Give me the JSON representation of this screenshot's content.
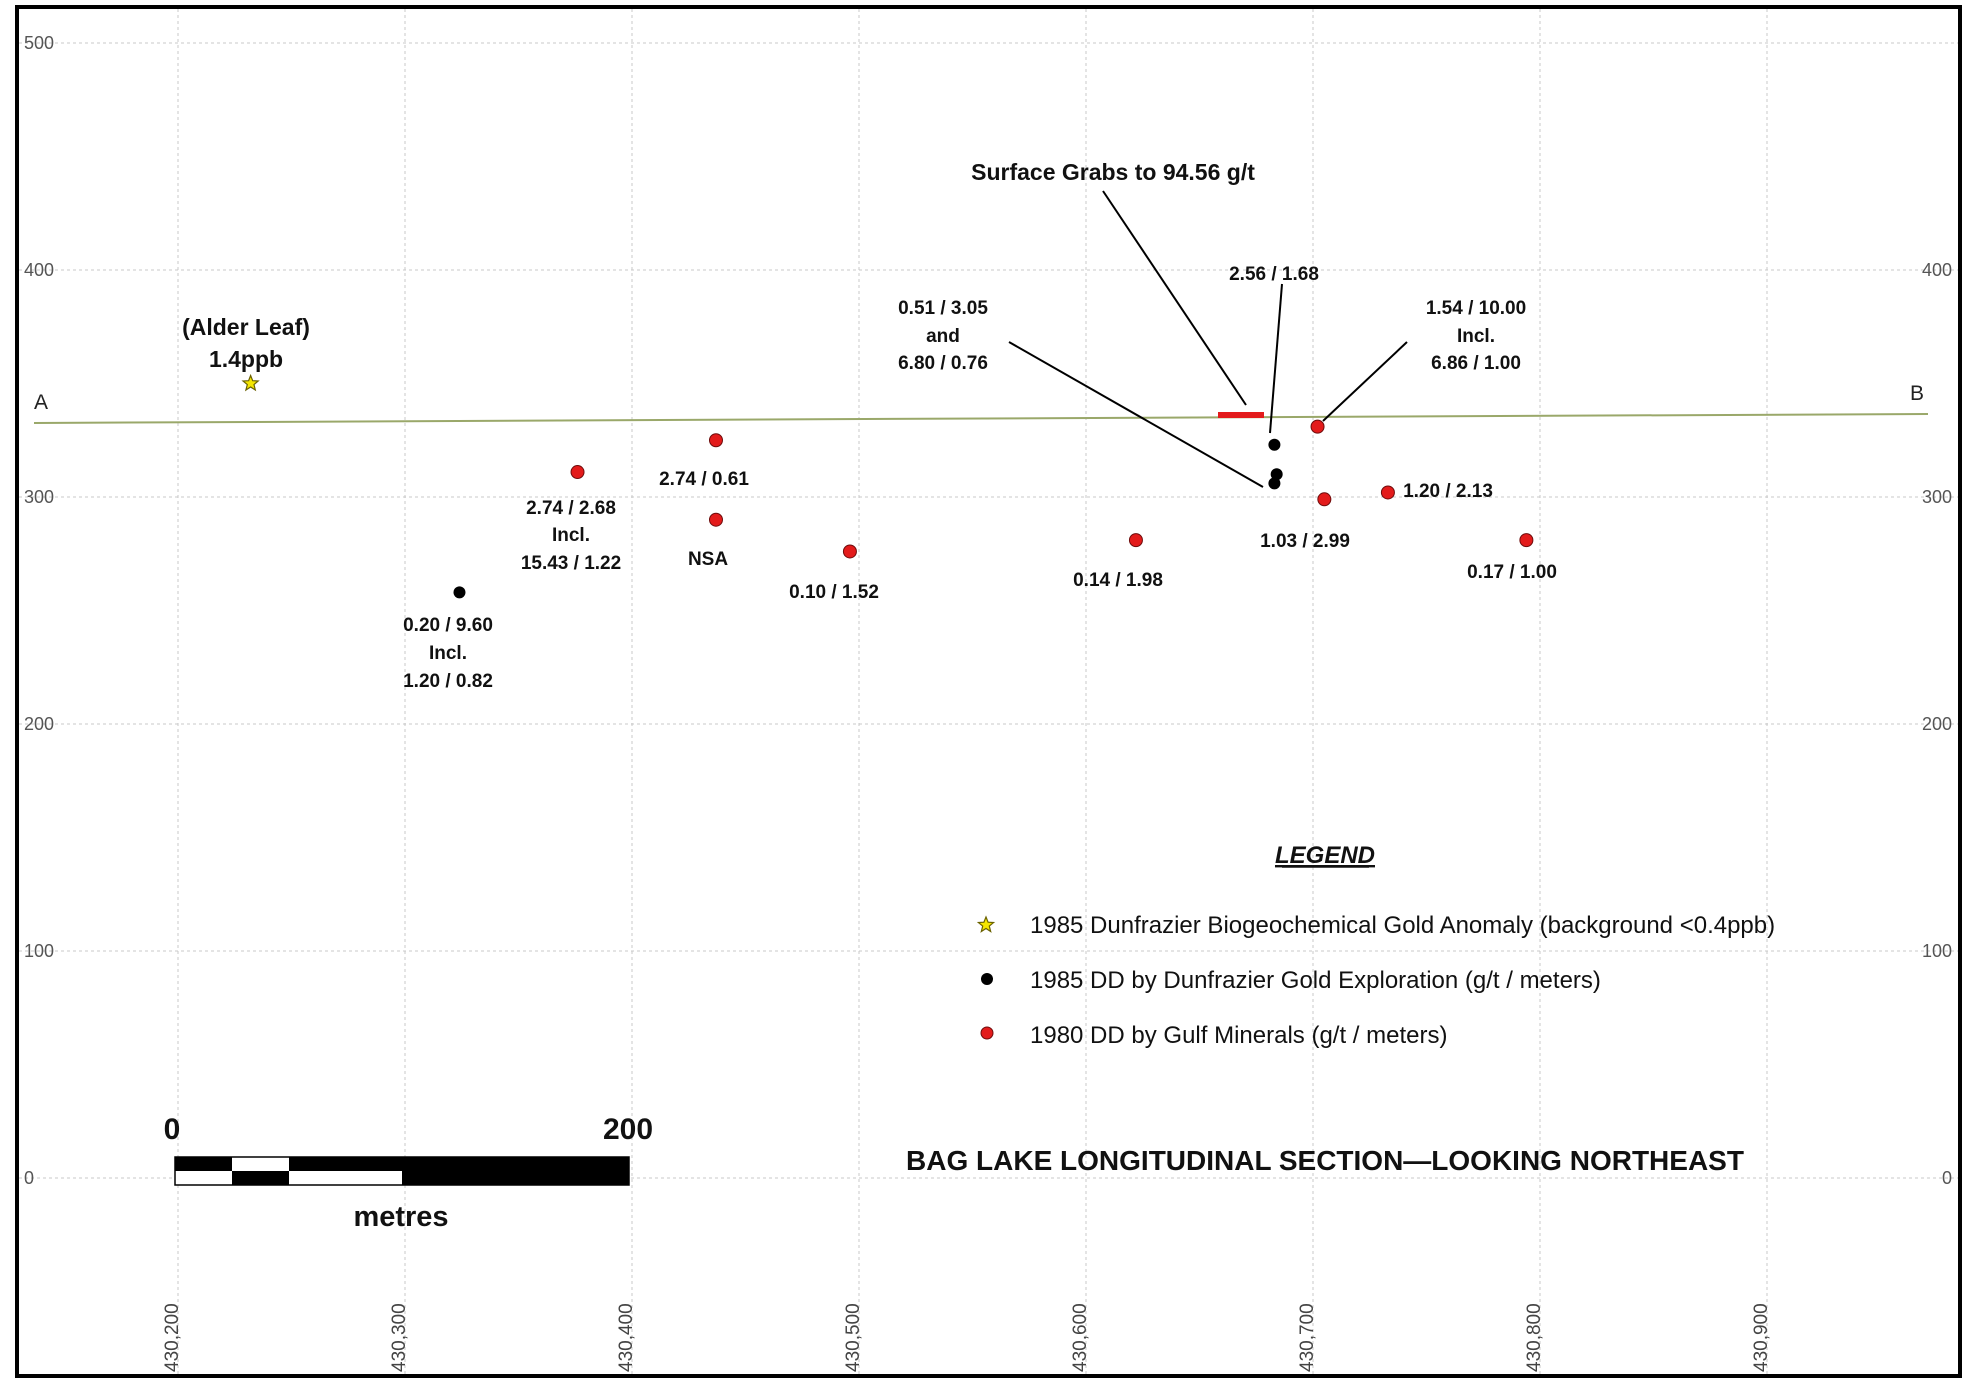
{
  "section": {
    "title": "BAG LAKE LONGITUDINAL SECTION—LOOKING NORTHEAST",
    "end_left": "A",
    "end_right": "B",
    "surface_grabs_label": "Surface Grabs to 94.56 g/t",
    "alder_leaf": {
      "name": "(Alder Leaf)",
      "value": "1.4ppb",
      "easting": 430232,
      "elev": 350
    },
    "surface_line_color": "#9aa86a",
    "surface_grab_color": "#e31b1b"
  },
  "chart_data": {
    "type": "scatter",
    "xlim": [
      430170,
      430970
    ],
    "ylim": [
      -70,
      510
    ],
    "y_ticks": [
      "500",
      "400",
      "300",
      "200",
      "100",
      "0"
    ],
    "x_ticks": [
      "430,200",
      "430,300",
      "430,400",
      "430,500",
      "430,600",
      "430,700",
      "430,800",
      "430,900"
    ],
    "grid": true,
    "series": [
      {
        "name": "1985 DD by Dunfrazier Gold Exploration (g/t / meters)",
        "color": "#000000",
        "points": [
          {
            "x": 430324,
            "y": 258
          },
          {
            "x": 430683,
            "y": 323
          },
          {
            "x": 430684,
            "y": 310
          },
          {
            "x": 430683,
            "y": 306
          }
        ]
      },
      {
        "name": "1980 DD by Gulf Minerals (g/t / meters)",
        "color": "#e31b1b",
        "points": [
          {
            "x": 430376,
            "y": 311
          },
          {
            "x": 430437,
            "y": 325
          },
          {
            "x": 430437,
            "y": 290
          },
          {
            "x": 430496,
            "y": 276
          },
          {
            "x": 430622,
            "y": 281
          },
          {
            "x": 430702,
            "y": 331
          },
          {
            "x": 430705,
            "y": 299
          },
          {
            "x": 430733,
            "y": 302
          },
          {
            "x": 430794,
            "y": 281
          }
        ]
      }
    ]
  },
  "annotations": {
    "a1": {
      "l1": "0.20 / 9.60",
      "l2": "Incl.",
      "l3": "1.20 / 0.82"
    },
    "a2": {
      "l1": "2.74 / 2.68",
      "l2": "Incl.",
      "l3": "15.43 / 1.22"
    },
    "a3": "2.74 / 0.61",
    "a4": "NSA",
    "a5": "0.10 / 1.52",
    "a6": "0.14 / 1.98",
    "a7": {
      "l1": "0.51 / 3.05",
      "l2": "and",
      "l3": "6.80 / 0.76"
    },
    "a8": "2.56 / 1.68",
    "a9": {
      "l1": "1.54 / 10.00",
      "l2": "Incl.",
      "l3": "6.86 / 1.00"
    },
    "a10": "1.03 / 2.99",
    "a11": "1.20 / 2.13",
    "a12": "0.17 / 1.00"
  },
  "legend": {
    "title": "LEGEND",
    "items": [
      {
        "symbol": "star",
        "label": "1985 Dunfrazier Biogeochemical Gold Anomaly (background <0.4ppb)",
        "color": "#f5e600"
      },
      {
        "symbol": "black-dot",
        "label": "1985 DD by Dunfrazier Gold Exploration (g/t / meters)",
        "color": "#000000"
      },
      {
        "symbol": "red-dot",
        "label": "1980 DD by Gulf Minerals (g/t / meters)",
        "color": "#e31b1b"
      }
    ]
  },
  "scale_bar": {
    "start": "0",
    "end": "200",
    "unit": "metres"
  }
}
